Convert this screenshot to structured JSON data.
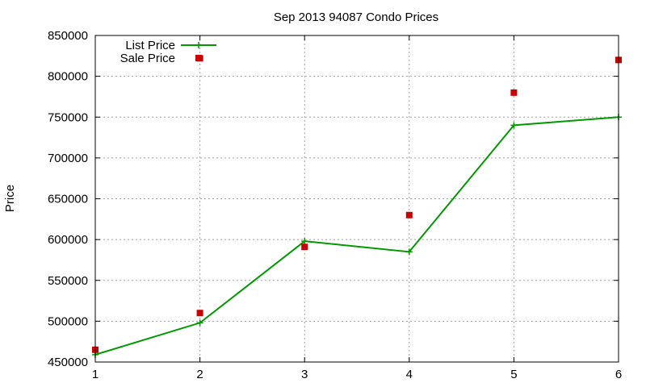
{
  "chart_data": {
    "type": "line",
    "title": "Sep 2013 94087 Condo Prices",
    "xlabel": "",
    "ylabel": "Price",
    "xlim": [
      1,
      6
    ],
    "ylim": [
      450000,
      850000
    ],
    "x_ticks": [
      "1",
      "2",
      "3",
      "4",
      "5",
      "6"
    ],
    "y_ticks": [
      "450000",
      "500000",
      "550000",
      "600000",
      "650000",
      "700000",
      "750000",
      "800000",
      "850000"
    ],
    "grid": true,
    "legend_position": "top-left",
    "series": [
      {
        "name": "List Price",
        "style": "linespoints",
        "marker": "plus",
        "color": "#009900",
        "x": [
          1,
          2,
          3,
          4,
          5,
          6
        ],
        "values": [
          459000,
          498000,
          598000,
          585000,
          740000,
          750000
        ]
      },
      {
        "name": "Sale Price",
        "style": "points",
        "marker": "square",
        "color": "#cc0000",
        "x": [
          1,
          2,
          3,
          4,
          5,
          6
        ],
        "values": [
          465000,
          510000,
          591000,
          630000,
          780000,
          820000
        ]
      },
      {
        "name": "",
        "style": "points",
        "marker": "square",
        "color": "#cc0000",
        "x": [
          2
        ],
        "values": [
          822000
        ]
      }
    ]
  }
}
